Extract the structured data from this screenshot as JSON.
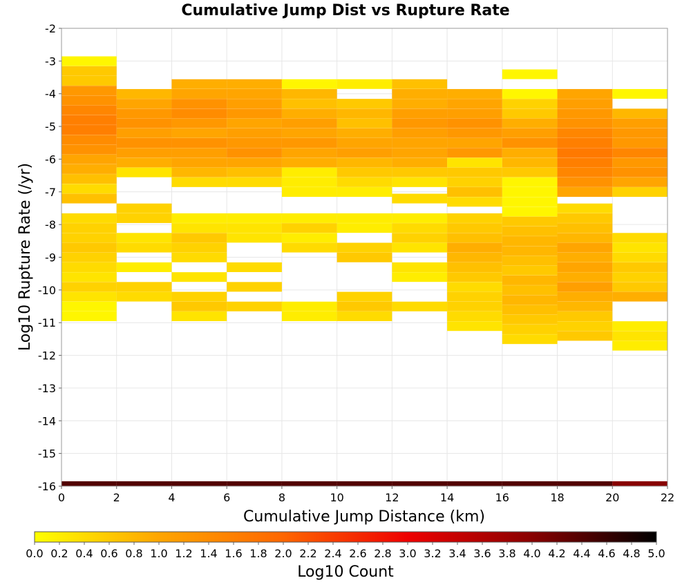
{
  "chart_data": {
    "type": "heatmap",
    "title": "Cumulative Jump Dist vs Rupture Rate",
    "xlabel": "Cumulative Jump Distance (km)",
    "ylabel": "Log10 Rupture Rate (/yr)",
    "xlim": [
      0,
      22
    ],
    "ylim": [
      -16,
      -2
    ],
    "x_bin_width": 2,
    "y_bin_height": 0.2857,
    "x_ticks": [
      "0",
      "2",
      "4",
      "6",
      "8",
      "10",
      "12",
      "14",
      "16",
      "18",
      "20",
      "22"
    ],
    "y_ticks": [
      "-2",
      "-3",
      "-4",
      "-5",
      "-6",
      "-7",
      "-8",
      "-9",
      "-10",
      "-11",
      "-12",
      "-13",
      "-14",
      "-15",
      "-16"
    ],
    "grid": true,
    "colorbar": {
      "label": "Log10 Count",
      "range": [
        0.0,
        5.0
      ],
      "ticks": [
        "0.0",
        "0.2",
        "0.4",
        "0.6",
        "0.8",
        "1.0",
        "1.2",
        "1.4",
        "1.6",
        "1.8",
        "2.0",
        "2.2",
        "2.4",
        "2.6",
        "2.8",
        "3.0",
        "3.2",
        "3.4",
        "3.6",
        "3.8",
        "4.0",
        "4.2",
        "4.4",
        "4.6",
        "4.8",
        "5.0"
      ],
      "colors": [
        "#ffff00",
        "#ffa500",
        "#ff6600",
        "#ee0000",
        "#880000",
        "#000000"
      ]
    },
    "columns": [
      {
        "x_start": 0,
        "cells": [
          [
            -3.0,
            0.1
          ],
          [
            -3.3,
            0.6
          ],
          [
            -3.6,
            0.6
          ],
          [
            -3.9,
            1.2
          ],
          [
            -4.2,
            1.3
          ],
          [
            -4.5,
            1.5
          ],
          [
            -4.8,
            1.6
          ],
          [
            -5.1,
            1.6
          ],
          [
            -5.4,
            1.4
          ],
          [
            -5.7,
            1.3
          ],
          [
            -6.0,
            1.0
          ],
          [
            -6.3,
            0.9
          ],
          [
            -6.6,
            0.7
          ],
          [
            -6.9,
            0.4
          ],
          [
            -7.2,
            0.7
          ],
          [
            -7.8,
            0.4
          ],
          [
            -8.1,
            0.5
          ],
          [
            -8.4,
            0.5
          ],
          [
            -8.7,
            0.6
          ],
          [
            -9.0,
            0.5
          ],
          [
            -9.3,
            0.4
          ],
          [
            -9.6,
            0.3
          ],
          [
            -9.9,
            0.5
          ],
          [
            -10.2,
            0.3
          ],
          [
            -10.5,
            0.1
          ],
          [
            -10.8,
            0.1
          ]
        ]
      },
      {
        "x_start": 2,
        "cells": [
          [
            -4.0,
            0.8
          ],
          [
            -4.3,
            1.0
          ],
          [
            -4.6,
            1.2
          ],
          [
            -4.9,
            1.3
          ],
          [
            -5.2,
            1.1
          ],
          [
            -5.5,
            1.3
          ],
          [
            -5.8,
            1.1
          ],
          [
            -6.1,
            0.9
          ],
          [
            -6.4,
            0.3
          ],
          [
            -7.5,
            0.5
          ],
          [
            -7.8,
            0.5
          ],
          [
            -8.4,
            0.3
          ],
          [
            -8.7,
            0.4
          ],
          [
            -9.3,
            0.2
          ],
          [
            -9.9,
            0.5
          ],
          [
            -10.2,
            0.4
          ]
        ]
      },
      {
        "x_start": 4,
        "cells": [
          [
            -3.7,
            0.9
          ],
          [
            -4.0,
            1.0
          ],
          [
            -4.3,
            1.3
          ],
          [
            -4.6,
            1.4
          ],
          [
            -4.9,
            1.2
          ],
          [
            -5.2,
            1.0
          ],
          [
            -5.5,
            1.3
          ],
          [
            -5.8,
            1.1
          ],
          [
            -6.1,
            1.0
          ],
          [
            -6.4,
            0.8
          ],
          [
            -6.7,
            0.4
          ],
          [
            -7.8,
            0.2
          ],
          [
            -8.1,
            0.3
          ],
          [
            -8.4,
            0.6
          ],
          [
            -8.7,
            0.5
          ],
          [
            -9.0,
            0.4
          ],
          [
            -9.6,
            0.3
          ],
          [
            -10.2,
            0.5
          ],
          [
            -10.5,
            0.6
          ],
          [
            -10.8,
            0.3
          ]
        ]
      },
      {
        "x_start": 6,
        "cells": [
          [
            -3.7,
            0.9
          ],
          [
            -4.0,
            1.0
          ],
          [
            -4.3,
            1.1
          ],
          [
            -4.6,
            1.2
          ],
          [
            -4.9,
            1.0
          ],
          [
            -5.2,
            1.1
          ],
          [
            -5.5,
            1.2
          ],
          [
            -5.8,
            1.3
          ],
          [
            -6.1,
            1.0
          ],
          [
            -6.4,
            0.7
          ],
          [
            -6.7,
            0.4
          ],
          [
            -7.8,
            0.2
          ],
          [
            -8.1,
            0.3
          ],
          [
            -8.4,
            0.3
          ],
          [
            -9.3,
            0.4
          ],
          [
            -9.9,
            0.5
          ],
          [
            -10.5,
            0.5
          ]
        ]
      },
      {
        "x_start": 8,
        "cells": [
          [
            -3.7,
            0.1
          ],
          [
            -4.0,
            0.8
          ],
          [
            -4.3,
            0.7
          ],
          [
            -4.6,
            0.9
          ],
          [
            -4.9,
            1.1
          ],
          [
            -5.2,
            1.0
          ],
          [
            -5.5,
            1.2
          ],
          [
            -5.8,
            1.0
          ],
          [
            -6.1,
            0.9
          ],
          [
            -6.4,
            0.2
          ],
          [
            -6.7,
            0.2
          ],
          [
            -7.0,
            0.2
          ],
          [
            -7.8,
            0.2
          ],
          [
            -8.1,
            0.5
          ],
          [
            -8.4,
            0.2
          ],
          [
            -8.7,
            0.4
          ],
          [
            -10.5,
            0.2
          ],
          [
            -10.8,
            0.2
          ]
        ]
      },
      {
        "x_start": 10,
        "cells": [
          [
            -3.7,
            0.2
          ],
          [
            -4.3,
            0.6
          ],
          [
            -4.6,
            0.8
          ],
          [
            -4.9,
            0.7
          ],
          [
            -5.2,
            0.9
          ],
          [
            -5.5,
            1.0
          ],
          [
            -5.8,
            1.1
          ],
          [
            -6.1,
            0.8
          ],
          [
            -6.4,
            0.6
          ],
          [
            -6.7,
            0.4
          ],
          [
            -7.0,
            0.2
          ],
          [
            -7.8,
            0.2
          ],
          [
            -8.1,
            0.2
          ],
          [
            -8.7,
            0.5
          ],
          [
            -9.0,
            0.6
          ],
          [
            -10.2,
            0.5
          ],
          [
            -10.5,
            0.6
          ],
          [
            -10.8,
            0.4
          ]
        ]
      },
      {
        "x_start": 12,
        "cells": [
          [
            -3.7,
            0.7
          ],
          [
            -4.0,
            0.9
          ],
          [
            -4.3,
            0.9
          ],
          [
            -4.6,
            1.1
          ],
          [
            -4.9,
            1.2
          ],
          [
            -5.2,
            1.1
          ],
          [
            -5.5,
            1.0
          ],
          [
            -5.8,
            1.0
          ],
          [
            -6.1,
            0.9
          ],
          [
            -6.4,
            0.6
          ],
          [
            -6.7,
            0.3
          ],
          [
            -7.2,
            0.4
          ],
          [
            -7.8,
            0.2
          ],
          [
            -8.1,
            0.4
          ],
          [
            -8.4,
            0.5
          ],
          [
            -8.7,
            0.3
          ],
          [
            -9.3,
            0.3
          ],
          [
            -9.6,
            0.2
          ],
          [
            -10.5,
            0.4
          ]
        ]
      },
      {
        "x_start": 14,
        "cells": [
          [
            -4.0,
            0.9
          ],
          [
            -4.3,
            1.0
          ],
          [
            -4.6,
            1.1
          ],
          [
            -4.9,
            1.3
          ],
          [
            -5.2,
            1.2
          ],
          [
            -5.5,
            1.0
          ],
          [
            -5.8,
            1.2
          ],
          [
            -6.1,
            0.3
          ],
          [
            -6.4,
            0.6
          ],
          [
            -6.7,
            0.5
          ],
          [
            -7.0,
            0.7
          ],
          [
            -7.3,
            0.4
          ],
          [
            -7.8,
            0.5
          ],
          [
            -8.1,
            0.6
          ],
          [
            -8.4,
            0.7
          ],
          [
            -8.7,
            0.9
          ],
          [
            -9.0,
            0.8
          ],
          [
            -9.3,
            0.7
          ],
          [
            -9.6,
            0.6
          ],
          [
            -9.9,
            0.4
          ],
          [
            -10.2,
            0.5
          ],
          [
            -10.5,
            0.5
          ],
          [
            -10.8,
            0.4
          ],
          [
            -11.1,
            0.3
          ]
        ]
      },
      {
        "x_start": 16,
        "cells": [
          [
            -3.4,
            0.1
          ],
          [
            -4.0,
            0.1
          ],
          [
            -4.3,
            0.5
          ],
          [
            -4.6,
            0.6
          ],
          [
            -4.9,
            0.9
          ],
          [
            -5.2,
            1.1
          ],
          [
            -5.5,
            1.3
          ],
          [
            -5.8,
            0.9
          ],
          [
            -6.1,
            0.8
          ],
          [
            -6.4,
            0.6
          ],
          [
            -6.7,
            0.1
          ],
          [
            -7.0,
            0.1
          ],
          [
            -7.3,
            0.1
          ],
          [
            -7.6,
            0.1
          ],
          [
            -7.9,
            0.6
          ],
          [
            -8.2,
            0.7
          ],
          [
            -8.5,
            0.8
          ],
          [
            -8.8,
            0.8
          ],
          [
            -9.1,
            0.7
          ],
          [
            -9.4,
            0.6
          ],
          [
            -9.7,
            0.8
          ],
          [
            -10.0,
            0.7
          ],
          [
            -10.3,
            0.8
          ],
          [
            -10.6,
            0.7
          ],
          [
            -10.9,
            0.6
          ],
          [
            -11.2,
            0.5
          ],
          [
            -11.5,
            0.4
          ]
        ]
      },
      {
        "x_start": 18,
        "cells": [
          [
            -4.0,
            1.0
          ],
          [
            -4.3,
            1.1
          ],
          [
            -4.6,
            1.2
          ],
          [
            -4.9,
            1.3
          ],
          [
            -5.2,
            1.5
          ],
          [
            -5.5,
            1.6
          ],
          [
            -5.8,
            1.7
          ],
          [
            -6.1,
            1.6
          ],
          [
            -6.4,
            1.5
          ],
          [
            -6.7,
            1.3
          ],
          [
            -7.0,
            1.0
          ],
          [
            -7.5,
            0.4
          ],
          [
            -7.8,
            0.6
          ],
          [
            -8.1,
            0.7
          ],
          [
            -8.4,
            0.8
          ],
          [
            -8.7,
            1.0
          ],
          [
            -9.0,
            0.9
          ],
          [
            -9.3,
            1.0
          ],
          [
            -9.6,
            0.9
          ],
          [
            -9.9,
            1.1
          ],
          [
            -10.2,
            0.9
          ],
          [
            -10.5,
            0.8
          ],
          [
            -10.8,
            0.6
          ],
          [
            -11.1,
            0.5
          ],
          [
            -11.4,
            0.6
          ]
        ]
      },
      {
        "x_start": 20,
        "cells": [
          [
            -4.0,
            0.1
          ],
          [
            -4.6,
            0.8
          ],
          [
            -4.9,
            1.1
          ],
          [
            -5.2,
            1.2
          ],
          [
            -5.5,
            1.2
          ],
          [
            -5.8,
            1.5
          ],
          [
            -6.1,
            1.2
          ],
          [
            -6.4,
            1.3
          ],
          [
            -6.7,
            1.0
          ],
          [
            -7.0,
            0.5
          ],
          [
            -8.4,
            0.4
          ],
          [
            -8.7,
            0.3
          ],
          [
            -9.0,
            0.4
          ],
          [
            -9.3,
            0.6
          ],
          [
            -9.6,
            0.5
          ],
          [
            -9.9,
            0.6
          ],
          [
            -10.2,
            0.9
          ],
          [
            -11.1,
            0.2
          ],
          [
            -11.4,
            0.3
          ],
          [
            -11.7,
            0.2
          ]
        ]
      }
    ],
    "bottom_row": {
      "y": -16.0,
      "values": [
        4.4,
        4.4,
        4.4,
        4.4,
        4.4,
        4.4,
        4.4,
        4.4,
        4.4,
        4.4,
        4.0
      ]
    }
  }
}
